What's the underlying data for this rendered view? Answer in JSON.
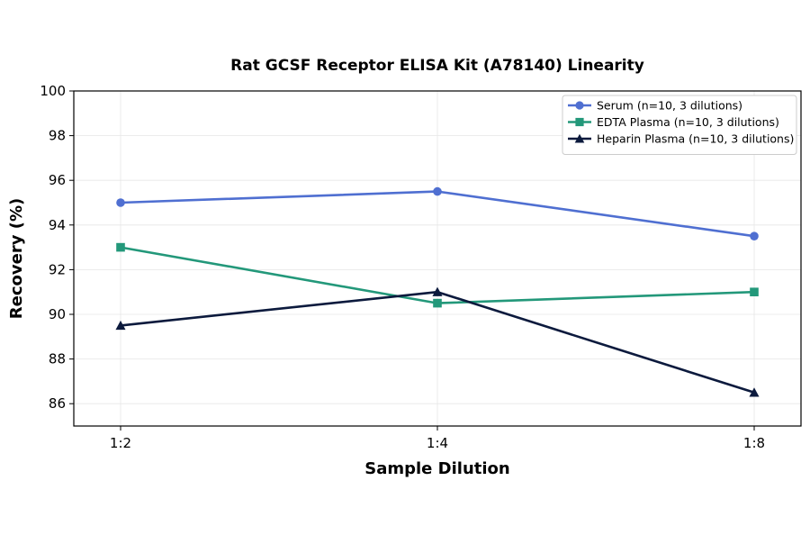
{
  "chart_data": {
    "type": "line",
    "title": "Rat GCSF Receptor ELISA Kit (A78140) Linearity",
    "xlabel": "Sample Dilution",
    "ylabel": "Recovery (%)",
    "categories": [
      "1:2",
      "1:4",
      "1:8"
    ],
    "ylim": [
      85,
      100
    ],
    "yticks": [
      86,
      88,
      90,
      92,
      94,
      96,
      98,
      100
    ],
    "grid": true,
    "legend_position": "top-right",
    "series": [
      {
        "name": "Serum (n=10, 3 dilutions)",
        "values": [
          95.0,
          95.5,
          93.5
        ],
        "color": "#4f6fd1",
        "marker": "circle"
      },
      {
        "name": "EDTA Plasma (n=10, 3 dilutions)",
        "values": [
          93.0,
          90.5,
          91.0
        ],
        "color": "#23987a",
        "marker": "square"
      },
      {
        "name": "Heparin Plasma (n=10, 3 dilutions)",
        "values": [
          89.5,
          91.0,
          86.5
        ],
        "color": "#0c1a3d",
        "marker": "triangle"
      }
    ]
  }
}
